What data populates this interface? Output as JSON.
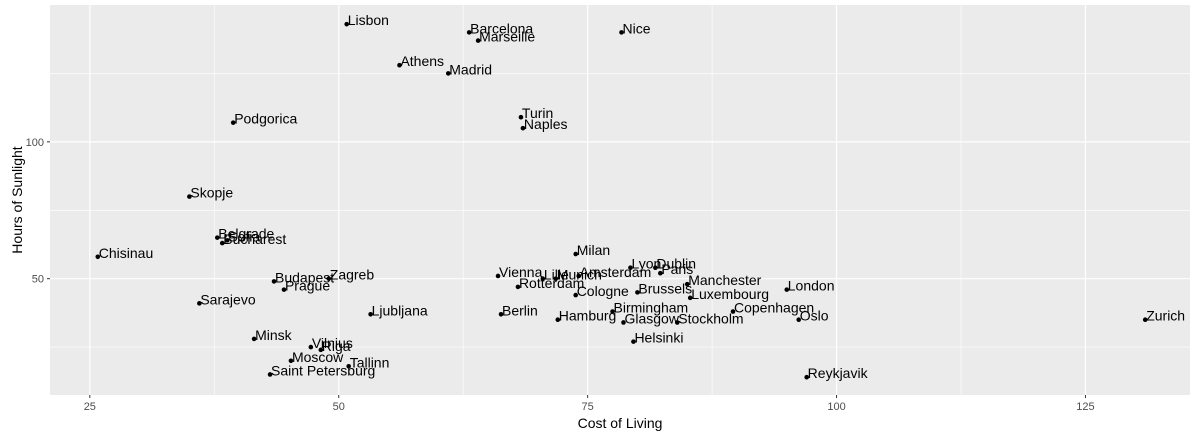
{
  "chart_data": {
    "type": "scatter",
    "title": "",
    "xlabel": "Cost of Living",
    "ylabel": "Hours of Sunlight",
    "xlim": [
      21,
      135.5
    ],
    "ylim": [
      7.5,
      150
    ],
    "x_ticks": [
      25,
      50,
      75,
      100,
      125
    ],
    "y_ticks": [
      50,
      100
    ],
    "grid": true,
    "legend": "none",
    "colors": {
      "panel": "#ebebeb",
      "grid": "#ffffff",
      "point": "#000000",
      "tick": "#4d4d4d",
      "text": "#000000"
    },
    "points": [
      {
        "label": "Lisbon",
        "x": 50.8,
        "y": 143
      },
      {
        "label": "Barcelona",
        "x": 63.1,
        "y": 140
      },
      {
        "label": "Marseille",
        "x": 64.0,
        "y": 137
      },
      {
        "label": "Nice",
        "x": 78.4,
        "y": 140
      },
      {
        "label": "Athens",
        "x": 56.1,
        "y": 128
      },
      {
        "label": "Madrid",
        "x": 61.0,
        "y": 125
      },
      {
        "label": "Podgorica",
        "x": 39.4,
        "y": 107
      },
      {
        "label": "Turin",
        "x": 68.3,
        "y": 109
      },
      {
        "label": "Naples",
        "x": 68.5,
        "y": 105
      },
      {
        "label": "Skopje",
        "x": 35.0,
        "y": 80
      },
      {
        "label": "Belgrade",
        "x": 37.8,
        "y": 65
      },
      {
        "label": "Bucharest",
        "x": 38.3,
        "y": 63
      },
      {
        "label": "Sofia",
        "x": 38.8,
        "y": 64
      },
      {
        "label": "Chisinau",
        "x": 25.8,
        "y": 58
      },
      {
        "label": "Milan",
        "x": 73.8,
        "y": 59
      },
      {
        "label": "Lyon",
        "x": 79.3,
        "y": 54
      },
      {
        "label": "Dublin",
        "x": 81.8,
        "y": 54
      },
      {
        "label": "Paris",
        "x": 82.3,
        "y": 52
      },
      {
        "label": "Amsterdam",
        "x": 74.1,
        "y": 51
      },
      {
        "label": "Vienna",
        "x": 66.0,
        "y": 51
      },
      {
        "label": "Lille",
        "x": 70.5,
        "y": 50
      },
      {
        "label": "Munich",
        "x": 71.8,
        "y": 50
      },
      {
        "label": "Rotterdam",
        "x": 68.0,
        "y": 47
      },
      {
        "label": "Cologne",
        "x": 73.8,
        "y": 44
      },
      {
        "label": "Brussels",
        "x": 80.0,
        "y": 45
      },
      {
        "label": "Manchester",
        "x": 85.0,
        "y": 48
      },
      {
        "label": "Luxembourg",
        "x": 85.3,
        "y": 43
      },
      {
        "label": "London",
        "x": 95.0,
        "y": 46
      },
      {
        "label": "Zagreb",
        "x": 49.0,
        "y": 50
      },
      {
        "label": "Budapest",
        "x": 43.5,
        "y": 49
      },
      {
        "label": "Prague",
        "x": 44.5,
        "y": 46
      },
      {
        "label": "Sarajevo",
        "x": 36.0,
        "y": 41
      },
      {
        "label": "Ljubljana",
        "x": 53.2,
        "y": 37
      },
      {
        "label": "Berlin",
        "x": 66.3,
        "y": 37
      },
      {
        "label": "Birmingham",
        "x": 77.5,
        "y": 38
      },
      {
        "label": "Hamburg",
        "x": 72.0,
        "y": 35
      },
      {
        "label": "Glasgow",
        "x": 78.6,
        "y": 34
      },
      {
        "label": "Stockholm",
        "x": 84.0,
        "y": 34
      },
      {
        "label": "Copenhagen",
        "x": 89.6,
        "y": 38
      },
      {
        "label": "Oslo",
        "x": 96.2,
        "y": 35
      },
      {
        "label": "Zurich",
        "x": 131.0,
        "y": 35
      },
      {
        "label": "Helsinki",
        "x": 79.6,
        "y": 27
      },
      {
        "label": "Minsk",
        "x": 41.5,
        "y": 28
      },
      {
        "label": "Vilnius",
        "x": 47.2,
        "y": 25
      },
      {
        "label": "Riga",
        "x": 48.2,
        "y": 24
      },
      {
        "label": "Moscow",
        "x": 45.2,
        "y": 20
      },
      {
        "label": "Tallinn",
        "x": 51.0,
        "y": 18
      },
      {
        "label": "Saint Petersburg",
        "x": 43.1,
        "y": 15
      },
      {
        "label": "Reykjavik",
        "x": 97.0,
        "y": 14
      }
    ]
  }
}
